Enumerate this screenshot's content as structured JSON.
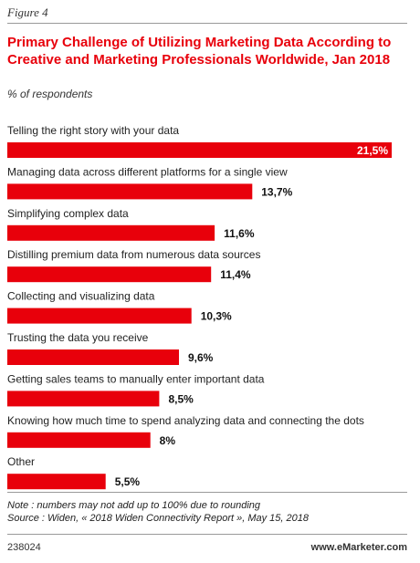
{
  "figure_label": "Figure 4",
  "title": "Primary Challenge of Utilizing Marketing Data According to Creative and Marketing Professionals Worldwide, Jan 2018",
  "subtitle": "% of respondents",
  "colors": {
    "bar": "#e8000b",
    "title": "#e8000b"
  },
  "chart_data": {
    "type": "bar",
    "orientation": "horizontal",
    "title": "Primary Challenge of Utilizing Marketing Data According to Creative and Marketing Professionals Worldwide, Jan 2018",
    "ylabel": "% of respondents",
    "categories": [
      "Telling the right story with your data",
      "Managing data across different platforms for a single view",
      "Simplifying complex data",
      "Distilling premium data from numerous  data sources",
      "Collecting and visualizing data",
      "Trusting the data you receive",
      "Getting sales teams to manually enter important data",
      "Knowing how much time to spend analyzing data and connecting the dots",
      "Other"
    ],
    "values": [
      21.5,
      13.7,
      11.6,
      11.4,
      10.3,
      9.6,
      8.5,
      8,
      5.5
    ],
    "value_labels": [
      "21,5%",
      "13,7%",
      "11,6%",
      "11,4%",
      "10,3%",
      "9,6%",
      "8,5%",
      "8%",
      "5,5%"
    ],
    "xlim": [
      0,
      21.5
    ],
    "grid": false,
    "legend": "none"
  },
  "footer": {
    "note": "Note : numbers may not add up to 100% due to rounding",
    "source": "Source : Widen, « 2018 Widen Connectivity Report », May 15, 2018",
    "chart_id": "238024",
    "brand": "www.eMarketer.com"
  }
}
